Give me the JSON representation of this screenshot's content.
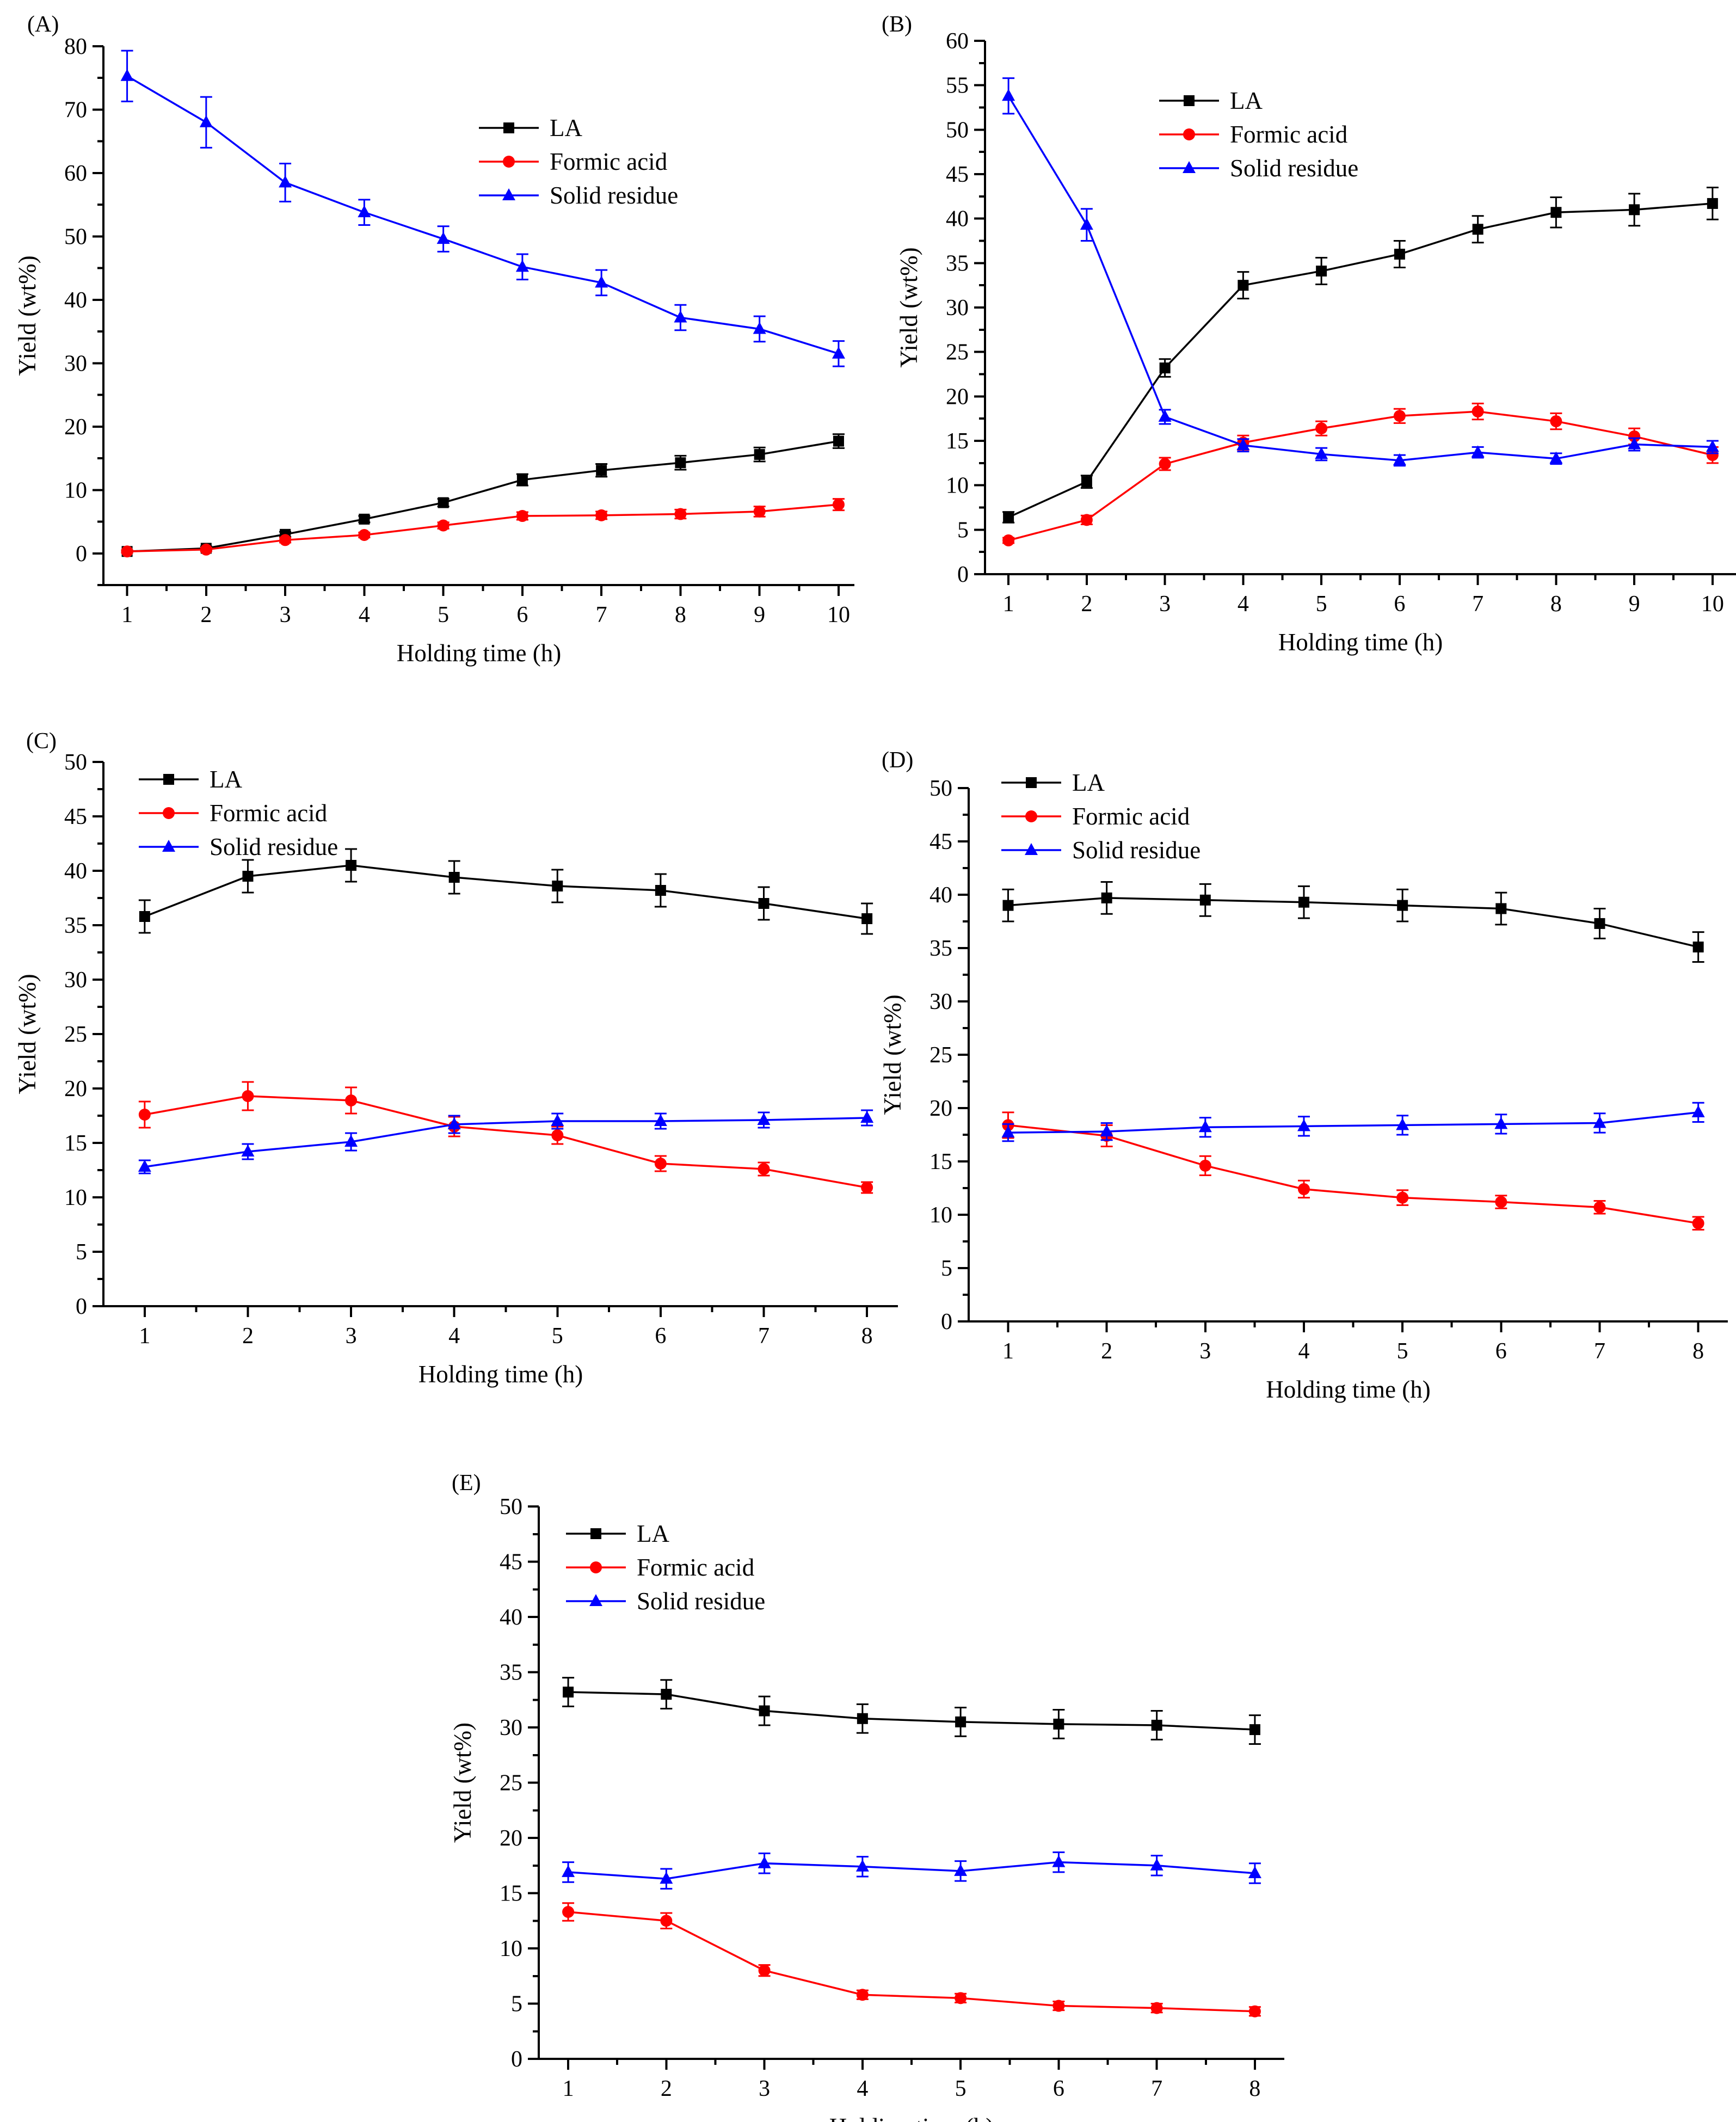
{
  "figure": {
    "colors": {
      "LA": "#000000",
      "Formic acid": "#ff0000",
      "Solid residue": "#0000ff"
    },
    "markers": {
      "LA": "square",
      "Formic acid": "circle",
      "Solid residue": "triangle"
    }
  },
  "chart_data": [
    {
      "id": "A",
      "label": "(A)",
      "type": "line",
      "xlabel": "Holding time (h)",
      "ylabel": "Yield (wt%)",
      "x": [
        1,
        2,
        3,
        4,
        5,
        6,
        7,
        8,
        9,
        10
      ],
      "xlim": [
        0.7,
        10.2
      ],
      "ylim": [
        -5,
        80
      ],
      "yticks": [
        0,
        10,
        20,
        30,
        40,
        50,
        60,
        70,
        80
      ],
      "xticks": [
        1,
        2,
        3,
        4,
        5,
        6,
        7,
        8,
        9,
        10
      ],
      "legend_position": "top-right",
      "series": [
        {
          "name": "LA",
          "values": [
            0.3,
            0.8,
            3.0,
            5.4,
            8.0,
            11.6,
            13.1,
            14.3,
            15.6,
            17.7
          ],
          "errors": [
            0.2,
            0.3,
            0.4,
            0.5,
            0.6,
            0.9,
            1.0,
            1.1,
            1.1,
            1.1
          ]
        },
        {
          "name": "Formic acid",
          "values": [
            0.3,
            0.6,
            2.1,
            2.9,
            4.4,
            5.9,
            6.0,
            6.2,
            6.6,
            7.7
          ],
          "errors": [
            0.2,
            0.3,
            0.4,
            0.4,
            0.5,
            0.6,
            0.6,
            0.7,
            0.8,
            0.9
          ]
        },
        {
          "name": "Solid residue",
          "values": [
            75.3,
            68.0,
            58.5,
            53.8,
            49.6,
            45.2,
            42.7,
            37.2,
            35.4,
            31.5
          ],
          "errors": [
            4.0,
            4.0,
            3.0,
            2.0,
            2.0,
            2.0,
            2.0,
            2.0,
            2.0,
            2.0
          ]
        }
      ]
    },
    {
      "id": "B",
      "label": "(B)",
      "type": "line",
      "xlabel": "Holding time (h)",
      "ylabel": "Yield (wt%)",
      "x": [
        1,
        2,
        3,
        4,
        5,
        6,
        7,
        8,
        9,
        10
      ],
      "xlim": [
        0.7,
        10.3
      ],
      "ylim": [
        0,
        60
      ],
      "yticks": [
        0,
        5,
        10,
        15,
        20,
        25,
        30,
        35,
        40,
        45,
        50,
        55,
        60
      ],
      "xticks": [
        1,
        2,
        3,
        4,
        5,
        6,
        7,
        8,
        9,
        10
      ],
      "legend_position": "top-center",
      "series": [
        {
          "name": "LA",
          "values": [
            6.4,
            10.4,
            23.2,
            32.5,
            34.1,
            36.0,
            38.8,
            40.7,
            41.0,
            41.7
          ],
          "errors": [
            0.6,
            0.7,
            1.0,
            1.5,
            1.5,
            1.5,
            1.5,
            1.7,
            1.8,
            1.8
          ]
        },
        {
          "name": "Formic acid",
          "values": [
            3.8,
            6.1,
            12.4,
            14.8,
            16.4,
            17.8,
            18.3,
            17.2,
            15.5,
            13.4
          ],
          "errors": [
            0.3,
            0.5,
            0.7,
            0.8,
            0.8,
            0.8,
            0.9,
            0.9,
            0.9,
            0.9
          ]
        },
        {
          "name": "Solid residue",
          "values": [
            53.8,
            39.3,
            17.7,
            14.5,
            13.5,
            12.8,
            13.7,
            13.0,
            14.6,
            14.3
          ],
          "errors": [
            2.0,
            1.8,
            0.8,
            0.7,
            0.7,
            0.6,
            0.6,
            0.6,
            0.7,
            0.7
          ]
        }
      ]
    },
    {
      "id": "C",
      "label": "(C)",
      "type": "line",
      "xlabel": "Holding time (h)",
      "ylabel": "Yield (wt%)",
      "x": [
        1,
        2,
        3,
        4,
        5,
        6,
        7,
        8
      ],
      "xlim": [
        0.6,
        8.3
      ],
      "ylim": [
        0,
        50
      ],
      "yticks": [
        0,
        5,
        10,
        15,
        20,
        25,
        30,
        35,
        40,
        45,
        50
      ],
      "xticks": [
        1,
        2,
        3,
        4,
        5,
        6,
        7,
        8
      ],
      "legend_position": "top-left",
      "series": [
        {
          "name": "LA",
          "values": [
            35.8,
            39.5,
            40.5,
            39.4,
            38.6,
            38.2,
            37.0,
            35.6
          ],
          "errors": [
            1.5,
            1.5,
            1.5,
            1.5,
            1.5,
            1.5,
            1.5,
            1.4
          ]
        },
        {
          "name": "Formic acid",
          "values": [
            17.6,
            19.3,
            18.9,
            16.5,
            15.7,
            13.1,
            12.6,
            10.9
          ],
          "errors": [
            1.2,
            1.3,
            1.2,
            0.9,
            0.8,
            0.7,
            0.6,
            0.5
          ]
        },
        {
          "name": "Solid residue",
          "values": [
            12.8,
            14.2,
            15.1,
            16.7,
            17.0,
            17.0,
            17.1,
            17.3
          ],
          "errors": [
            0.6,
            0.7,
            0.8,
            0.8,
            0.7,
            0.7,
            0.7,
            0.7
          ]
        }
      ]
    },
    {
      "id": "D",
      "label": "(D)",
      "type": "line",
      "xlabel": "Holding time (h)",
      "ylabel": "Yield (wt%)",
      "x": [
        1,
        2,
        3,
        4,
        5,
        6,
        7,
        8
      ],
      "xlim": [
        0.6,
        8.3
      ],
      "ylim": [
        0,
        50
      ],
      "yticks": [
        0,
        5,
        10,
        15,
        20,
        25,
        30,
        35,
        40,
        45,
        50
      ],
      "xticks": [
        1,
        2,
        3,
        4,
        5,
        6,
        7,
        8
      ],
      "legend_position": "top-left",
      "series": [
        {
          "name": "LA",
          "values": [
            39.0,
            39.7,
            39.5,
            39.3,
            39.0,
            38.7,
            37.3,
            35.1
          ],
          "errors": [
            1.5,
            1.5,
            1.5,
            1.5,
            1.5,
            1.5,
            1.4,
            1.4
          ]
        },
        {
          "name": "Formic acid",
          "values": [
            18.4,
            17.4,
            14.6,
            12.4,
            11.6,
            11.2,
            10.7,
            9.2
          ],
          "errors": [
            1.2,
            1.0,
            0.9,
            0.8,
            0.7,
            0.6,
            0.6,
            0.6
          ]
        },
        {
          "name": "Solid residue",
          "values": [
            17.7,
            17.8,
            18.2,
            18.3,
            18.4,
            18.5,
            18.6,
            19.6
          ],
          "errors": [
            0.8,
            0.8,
            0.9,
            0.9,
            0.9,
            0.9,
            0.9,
            0.9
          ]
        }
      ]
    },
    {
      "id": "E",
      "label": "(E)",
      "type": "line",
      "xlabel": "Holding time (h)",
      "ylabel": "Yield (wt%)",
      "x": [
        1,
        2,
        3,
        4,
        5,
        6,
        7,
        8
      ],
      "xlim": [
        0.7,
        8.3
      ],
      "ylim": [
        0,
        50
      ],
      "yticks": [
        0,
        5,
        10,
        15,
        20,
        25,
        30,
        35,
        40,
        45,
        50
      ],
      "xticks": [
        1,
        2,
        3,
        4,
        5,
        6,
        7,
        8
      ],
      "legend_position": "top-left",
      "series": [
        {
          "name": "LA",
          "values": [
            33.2,
            33.0,
            31.5,
            30.8,
            30.5,
            30.3,
            30.2,
            29.8
          ],
          "errors": [
            1.3,
            1.3,
            1.3,
            1.3,
            1.3,
            1.3,
            1.3,
            1.3
          ]
        },
        {
          "name": "Formic acid",
          "values": [
            13.3,
            12.5,
            8.0,
            5.8,
            5.5,
            4.8,
            4.6,
            4.3
          ],
          "errors": [
            0.8,
            0.7,
            0.5,
            0.4,
            0.4,
            0.4,
            0.4,
            0.4
          ]
        },
        {
          "name": "Solid residue",
          "values": [
            16.9,
            16.3,
            17.7,
            17.4,
            17.0,
            17.8,
            17.5,
            16.8
          ],
          "errors": [
            0.9,
            0.9,
            0.9,
            0.9,
            0.9,
            0.9,
            0.9,
            0.9
          ]
        }
      ]
    }
  ]
}
